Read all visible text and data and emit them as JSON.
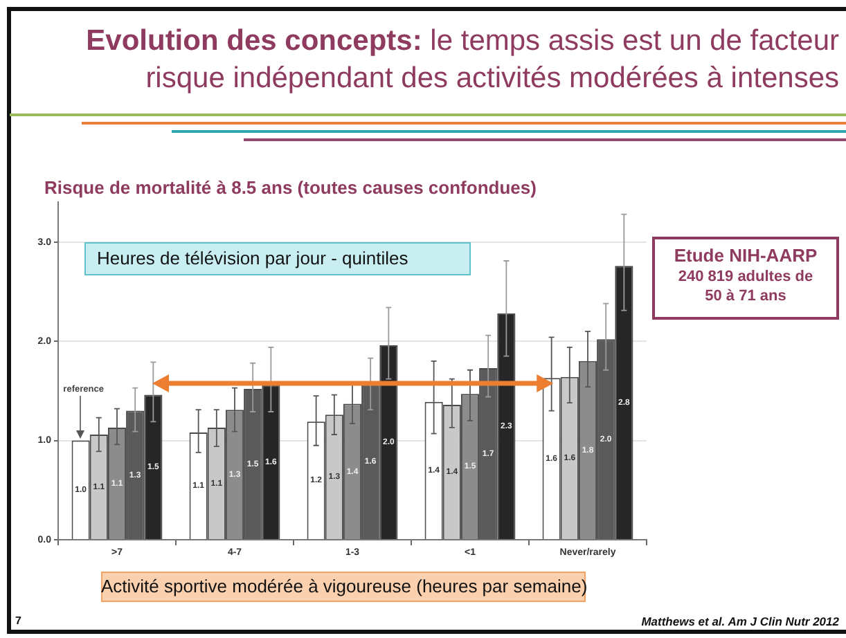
{
  "chart_data": {
    "type": "bar",
    "title": "Evolution des concepts: le temps assis est un de facteur risque indépendant des activités modérées à intenses",
    "subtitle": "Risque de mortalité à 8.5 ans (toutes causes confondues)",
    "xlabel": "Activité sportive modérée à vigoureuse (heures par semaine)",
    "categories": [
      ">7",
      "4-7",
      "1-3",
      "<1",
      "Never/rarely"
    ],
    "series": [
      {
        "color": "#ffffff",
        "values": [
          1.0,
          1.08,
          1.19,
          1.39,
          1.63
        ],
        "errors": [
          null,
          [
            0.88,
            1.31
          ],
          [
            0.95,
            1.45
          ],
          [
            1.07,
            1.8
          ],
          [
            1.3,
            2.04
          ]
        ],
        "value_labels": [
          "1.0",
          "1.1",
          "1.2",
          "1.4",
          "1.6"
        ]
      },
      {
        "color": "#c8c8c8",
        "values": [
          1.06,
          1.13,
          1.26,
          1.36,
          1.64
        ],
        "errors": [
          [
            0.89,
            1.23
          ],
          [
            0.94,
            1.31
          ],
          [
            1.06,
            1.46
          ],
          [
            1.13,
            1.62
          ],
          [
            1.38,
            1.94
          ]
        ],
        "value_labels": [
          "1.1",
          "1.1",
          "1.3",
          "1.4",
          "1.6"
        ]
      },
      {
        "color": "#8c8c8c",
        "values": [
          1.13,
          1.31,
          1.37,
          1.47,
          1.8
        ],
        "errors": [
          [
            0.96,
            1.32
          ],
          [
            1.09,
            1.53
          ],
          [
            1.17,
            1.57
          ],
          [
            1.2,
            1.71
          ],
          [
            1.54,
            2.1
          ]
        ],
        "value_labels": [
          "1.1",
          "1.3",
          "1.4",
          "1.5",
          "1.8"
        ]
      },
      {
        "color": "#5a5a5a",
        "values": [
          1.3,
          1.52,
          1.57,
          1.73,
          2.02
        ],
        "errors": [
          [
            1.09,
            1.53
          ],
          [
            1.29,
            1.78
          ],
          [
            1.31,
            1.83
          ],
          [
            1.44,
            2.06
          ],
          [
            1.71,
            2.38
          ]
        ],
        "value_labels": [
          "1.3",
          "1.5",
          "1.6",
          "1.7",
          "2.0"
        ]
      },
      {
        "color": "#262626",
        "values": [
          1.46,
          1.56,
          1.96,
          2.28,
          2.76
        ],
        "errors": [
          [
            1.19,
            1.79
          ],
          [
            1.29,
            1.94
          ],
          [
            1.62,
            2.34
          ],
          [
            1.85,
            2.81
          ],
          [
            2.31,
            3.28
          ]
        ],
        "value_labels": [
          "1.5",
          "1.6",
          "2.0",
          "2.3",
          "2.8"
        ]
      }
    ],
    "ylim": [
      0,
      3.4
    ],
    "yticks": [
      {
        "value": 0,
        "label": "0.0"
      },
      {
        "value": 1,
        "label": "1.0"
      },
      {
        "value": 2,
        "label": "2.0"
      },
      {
        "value": 3,
        "label": "3.0"
      }
    ],
    "grid": "y",
    "annotations": [
      "Heures de télévision par jour - quintiles",
      "Etude NIH-AARP\n240 819 adultes de 50 à 71 ans",
      "reference",
      "7",
      "Matthews et al. Am J Clin Nutr 2012"
    ]
  }
}
